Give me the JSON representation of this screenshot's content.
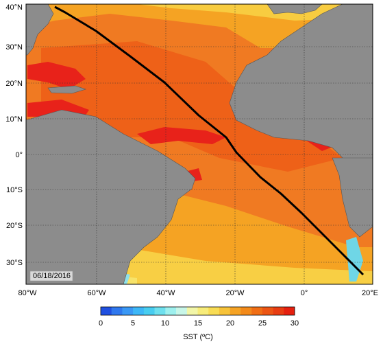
{
  "map": {
    "date_label": "06/18/2016",
    "lat_labels": [
      "40°N",
      "30°N",
      "20°N",
      "10°N",
      "0°",
      "10°S",
      "20°S",
      "30°S"
    ],
    "lon_labels": [
      "80°W",
      "60°W",
      "40°W",
      "20°W",
      "0°",
      "20°E"
    ],
    "colors": {
      "land": "#8c8c8c",
      "warm_core": "#f06a1e",
      "hot": "#e8221a",
      "mid": "#f5a323",
      "cool": "#f7d737",
      "cold": "#6fd6e6",
      "track": "#000000"
    }
  },
  "colorbar": {
    "title": "SST (ºC)",
    "tick_labels": [
      "0",
      "5",
      "10",
      "15",
      "20",
      "25",
      "30"
    ],
    "colors": [
      "#2050e0",
      "#2f78ee",
      "#3a98f5",
      "#3db7f7",
      "#48cdf0",
      "#6ee0ee",
      "#9ef0ee",
      "#c8f6e8",
      "#f2f6a8",
      "#f7ec7a",
      "#f8dc54",
      "#f7c33a",
      "#f5a325",
      "#f38a1a",
      "#f06e15",
      "#ec5514",
      "#e83d12",
      "#e5200f"
    ]
  }
}
